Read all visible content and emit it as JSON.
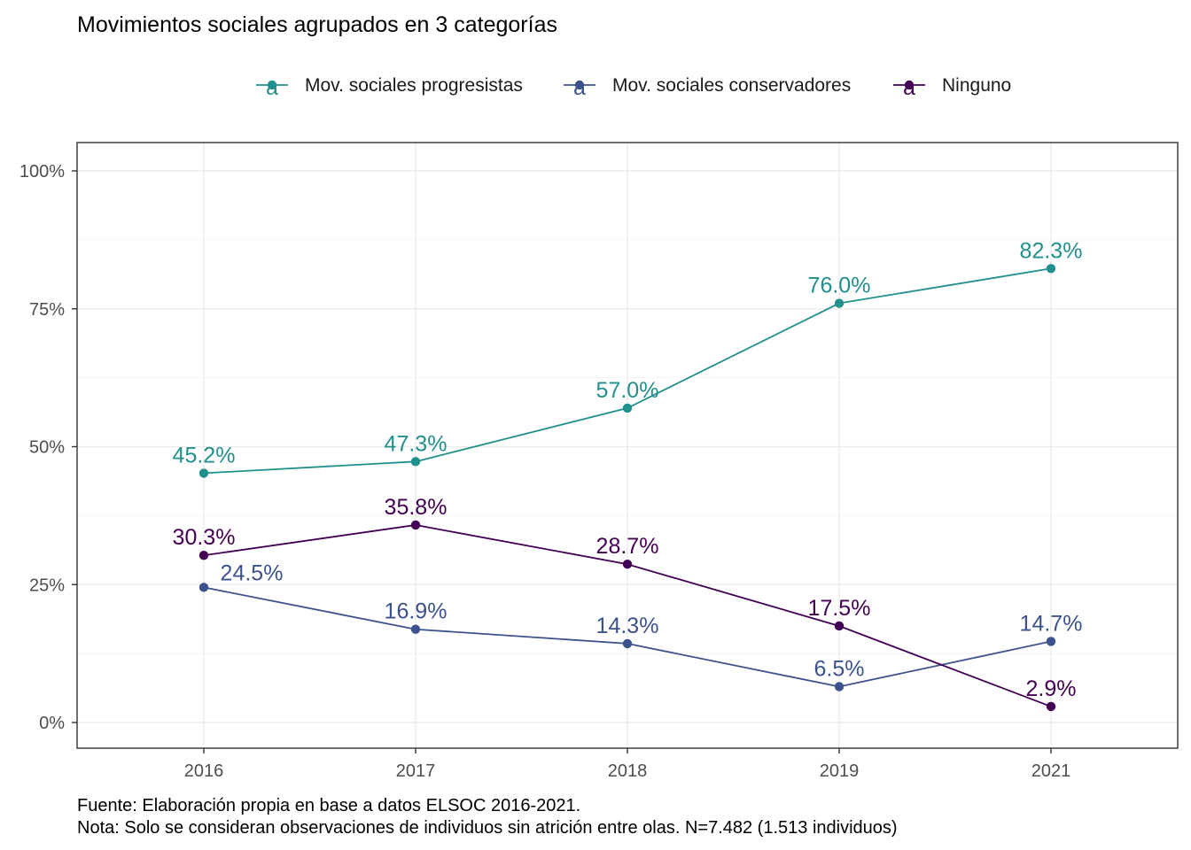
{
  "chart_data": {
    "type": "line",
    "title": "Movimientos sociales agrupados en 3 categorías",
    "x": [
      "2016",
      "2017",
      "2018",
      "2019",
      "2021"
    ],
    "series": [
      {
        "name": "Mov. sociales progresistas",
        "color": "#21908C",
        "values": [
          45.2,
          47.3,
          57.0,
          76.0,
          82.3
        ],
        "labels": [
          "45.2%",
          "47.3%",
          "57.0%",
          "76.0%",
          "82.3%"
        ]
      },
      {
        "name": "Mov. sociales conservadores",
        "color": "#3B528B",
        "values": [
          24.5,
          16.9,
          14.3,
          6.5,
          14.7
        ],
        "labels": [
          "24.5%",
          "16.9%",
          "14.3%",
          "6.5%",
          "14.7%"
        ]
      },
      {
        "name": "Ninguno",
        "color": "#440154",
        "values": [
          30.3,
          35.8,
          28.7,
          17.5,
          2.9
        ],
        "labels": [
          "30.3%",
          "35.8%",
          "28.7%",
          "17.5%",
          "2.9%"
        ]
      }
    ],
    "ylim": [
      0,
      100
    ],
    "yticks": [
      0,
      25,
      50,
      75,
      100
    ],
    "ytick_labels": [
      "0%",
      "25%",
      "50%",
      "75%",
      "100%"
    ],
    "legend_position": "top",
    "legend_key_glyph": "a",
    "grid": true,
    "caption": [
      "Fuente: Elaboración propia en base a datos ELSOC 2016-2021.",
      "Nota: Solo se consideran observaciones de individuos sin atrición entre olas. N=7.482 (1.513 individuos)"
    ]
  }
}
